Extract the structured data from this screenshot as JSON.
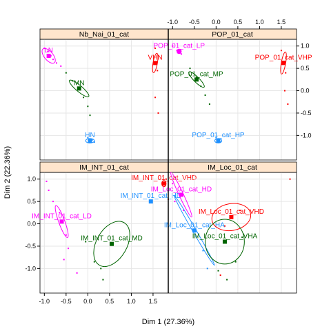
{
  "colors": {
    "strip_fill": "#FFE5CC",
    "grid": "#E6E6E6",
    "frame": "#000000",
    "low": "#FF00FF",
    "mid": "#006400",
    "high": "#1E90FF",
    "very_high": "#FF0000"
  },
  "chart_data": {
    "type": "scatter",
    "xlabel": "Dim 1 (27.36%)",
    "ylabel": "Dim 2 (22.36%)",
    "xlim": [
      -1.1,
      1.85
    ],
    "ylim": [
      -1.55,
      1.15
    ],
    "x_ticks": [
      -1.0,
      -0.5,
      0.0,
      0.5,
      1.0,
      1.5
    ],
    "x_tick_labels": [
      "-1.0",
      "-0.5",
      "0.0",
      "0.5",
      "1.0",
      "1.5"
    ],
    "y_ticks": [
      -1.0,
      -0.5,
      0.0,
      0.5,
      1.0
    ],
    "y_tick_labels": [
      "-1.0",
      "-0.5",
      "0.0",
      "0.5",
      "1.0"
    ],
    "grid": true,
    "panels": [
      {
        "title": "Nb_Nai_01_cat",
        "categories": [
          {
            "label": "LN",
            "x": -0.9,
            "y": 0.78,
            "color": "low",
            "ellipse": {
              "rx": 0.1,
              "ry": 0.2,
              "angle": -40
            }
          },
          {
            "label": "MN",
            "x": -0.2,
            "y": 0.05,
            "color": "mid",
            "ellipse": {
              "rx": 0.07,
              "ry": 0.28,
              "angle": -50
            }
          },
          {
            "label": "HN",
            "x": 0.05,
            "y": -1.12,
            "color": "high",
            "ellipse": {
              "rx": 0.1,
              "ry": 0.05,
              "angle": 0
            }
          },
          {
            "label": "VHN",
            "x": 1.55,
            "y": 0.62,
            "color": "very_high",
            "ellipse": {
              "rx": 0.05,
              "ry": 0.22,
              "angle": 10
            }
          }
        ],
        "individuals": [
          {
            "x": -1.0,
            "y": 0.95,
            "color": "low"
          },
          {
            "x": -0.92,
            "y": 0.88,
            "color": "low"
          },
          {
            "x": -0.85,
            "y": 0.78,
            "color": "low"
          },
          {
            "x": -0.8,
            "y": 0.7,
            "color": "low"
          },
          {
            "x": -0.72,
            "y": 0.62,
            "color": "low"
          },
          {
            "x": -0.62,
            "y": 0.55,
            "color": "low"
          },
          {
            "x": -0.5,
            "y": 0.4,
            "color": "mid"
          },
          {
            "x": -0.35,
            "y": 0.22,
            "color": "mid"
          },
          {
            "x": -0.2,
            "y": 0.05,
            "color": "mid"
          },
          {
            "x": -0.1,
            "y": -0.15,
            "color": "mid"
          },
          {
            "x": 0.0,
            "y": -0.35,
            "color": "mid"
          },
          {
            "x": 0.05,
            "y": -0.55,
            "color": "mid"
          },
          {
            "x": 0.0,
            "y": -1.05,
            "color": "high"
          },
          {
            "x": 0.1,
            "y": -1.1,
            "color": "high"
          },
          {
            "x": 0.15,
            "y": -1.15,
            "color": "high"
          },
          {
            "x": 1.55,
            "y": 0.95,
            "color": "very_high"
          },
          {
            "x": 1.6,
            "y": 0.45,
            "color": "very_high"
          },
          {
            "x": 1.55,
            "y": -0.15,
            "color": "very_high"
          },
          {
            "x": 1.62,
            "y": -0.5,
            "color": "very_high"
          }
        ]
      },
      {
        "title": "POP_01_cat",
        "categories": [
          {
            "label": "POP_01_cat_LP",
            "x": -0.85,
            "y": 0.88,
            "color": "low",
            "ellipse": {
              "rx": 0.05,
              "ry": 0.05,
              "angle": 0
            }
          },
          {
            "label": "POP_01_cat_MP",
            "x": -0.45,
            "y": 0.25,
            "color": "mid",
            "ellipse": {
              "rx": 0.06,
              "ry": 0.24,
              "angle": -45
            }
          },
          {
            "label": "POP_01_cat_HP",
            "x": 0.05,
            "y": -1.12,
            "color": "high",
            "ellipse": {
              "rx": 0.08,
              "ry": 0.05,
              "angle": 0
            }
          },
          {
            "label": "POP_01_cat_VHP",
            "x": 1.55,
            "y": 0.62,
            "color": "very_high",
            "ellipse": {
              "rx": 0.05,
              "ry": 0.25,
              "angle": 10
            }
          }
        ],
        "individuals": [
          {
            "x": -1.0,
            "y": 1.0,
            "color": "low"
          },
          {
            "x": -0.9,
            "y": 0.9,
            "color": "low"
          },
          {
            "x": -0.8,
            "y": 0.82,
            "color": "low"
          },
          {
            "x": -0.6,
            "y": 0.5,
            "color": "mid"
          },
          {
            "x": -0.45,
            "y": 0.3,
            "color": "mid"
          },
          {
            "x": -0.35,
            "y": 0.1,
            "color": "mid"
          },
          {
            "x": -0.25,
            "y": -0.1,
            "color": "mid"
          },
          {
            "x": -0.15,
            "y": -0.3,
            "color": "mid"
          },
          {
            "x": 0.0,
            "y": -1.05,
            "color": "high"
          },
          {
            "x": 0.1,
            "y": -1.15,
            "color": "high"
          },
          {
            "x": 1.5,
            "y": 0.9,
            "color": "very_high"
          },
          {
            "x": 1.6,
            "y": 0.4,
            "color": "very_high"
          },
          {
            "x": 1.58,
            "y": 0.0,
            "color": "very_high"
          },
          {
            "x": 1.65,
            "y": -0.3,
            "color": "very_high"
          }
        ]
      },
      {
        "title": "IM_INT_01_cat",
        "categories": [
          {
            "label": "IM_INT_01_cat_LD",
            "x": -0.6,
            "y": 0.05,
            "color": "low",
            "ellipse": {
              "rx": 0.07,
              "ry": 0.38,
              "angle": -20
            }
          },
          {
            "label": "IM_INT_01_cat_MD",
            "x": 0.55,
            "y": -0.45,
            "color": "mid",
            "ellipse": {
              "rx": 0.35,
              "ry": 0.55,
              "angle": 30
            }
          },
          {
            "label": "IM_INT_01_cat_HD",
            "x": 1.45,
            "y": 0.5,
            "color": "high",
            "ellipse": null
          },
          {
            "label": "IM_INT_01_cat_VHD",
            "x": 1.75,
            "y": 0.9,
            "color": "very_high",
            "ellipse": {
              "rx": 0.05,
              "ry": 0.07,
              "angle": 0
            }
          }
        ],
        "individuals": [
          {
            "x": -0.95,
            "y": 0.95,
            "color": "low"
          },
          {
            "x": -0.9,
            "y": 0.75,
            "color": "low"
          },
          {
            "x": -0.8,
            "y": 0.5,
            "color": "low"
          },
          {
            "x": -0.65,
            "y": 0.25,
            "color": "low"
          },
          {
            "x": -0.5,
            "y": -0.25,
            "color": "low"
          },
          {
            "x": -0.45,
            "y": -0.55,
            "color": "low"
          },
          {
            "x": -0.55,
            "y": -0.8,
            "color": "low"
          },
          {
            "x": -0.25,
            "y": -1.1,
            "color": "low"
          },
          {
            "x": 0.15,
            "y": -0.85,
            "color": "mid"
          },
          {
            "x": 0.3,
            "y": -1.0,
            "color": "mid"
          },
          {
            "x": 0.35,
            "y": -1.25,
            "color": "mid"
          },
          {
            "x": -0.05,
            "y": -0.4,
            "color": "mid"
          },
          {
            "x": 1.8,
            "y": 1.0,
            "color": "very_high"
          },
          {
            "x": 1.85,
            "y": 0.55,
            "color": "very_high"
          }
        ]
      },
      {
        "title": "IM_Loc_01_cat",
        "categories": [
          {
            "label": "IM_Loc_01_cat_HD",
            "x": -0.8,
            "y": 0.65,
            "color": "low",
            "ellipse": {
              "rx": 0.05,
              "ry": 0.55,
              "angle": -25
            }
          },
          {
            "label": "IM_Loc_01_cat_HA",
            "x": -0.5,
            "y": -0.15,
            "color": "high",
            "ellipse": {
              "rx": 0.04,
              "ry": 0.9,
              "angle": -30
            }
          },
          {
            "label": "IM_Loc_01_cat_VHD",
            "x": 0.35,
            "y": 0.15,
            "color": "very_high",
            "ellipse": {
              "rx": 0.45,
              "ry": 0.3,
              "angle": -10
            }
          },
          {
            "label": "IM_Loc_01_cat_VHA",
            "x": 0.2,
            "y": -0.4,
            "color": "mid",
            "ellipse": {
              "rx": 0.45,
              "ry": 0.5,
              "angle": 0
            }
          }
        ],
        "individuals": [
          {
            "x": -1.0,
            "y": 0.9,
            "color": "low"
          },
          {
            "x": -0.95,
            "y": 0.5,
            "color": "low"
          },
          {
            "x": -0.75,
            "y": 0.3,
            "color": "low"
          },
          {
            "x": -0.3,
            "y": -0.6,
            "color": "high"
          },
          {
            "x": -0.2,
            "y": -1.0,
            "color": "high"
          },
          {
            "x": 0.55,
            "y": 0.3,
            "color": "very_high"
          },
          {
            "x": 0.2,
            "y": -0.05,
            "color": "very_high"
          },
          {
            "x": 0.1,
            "y": -1.15,
            "color": "very_high"
          },
          {
            "x": 0.25,
            "y": -1.25,
            "color": "mid"
          },
          {
            "x": 0.45,
            "y": -0.85,
            "color": "mid"
          },
          {
            "x": 0.6,
            "y": -0.3,
            "color": "mid"
          },
          {
            "x": 0.05,
            "y": -1.05,
            "color": "mid"
          },
          {
            "x": 1.7,
            "y": 1.0,
            "color": "very_high"
          }
        ]
      }
    ]
  }
}
